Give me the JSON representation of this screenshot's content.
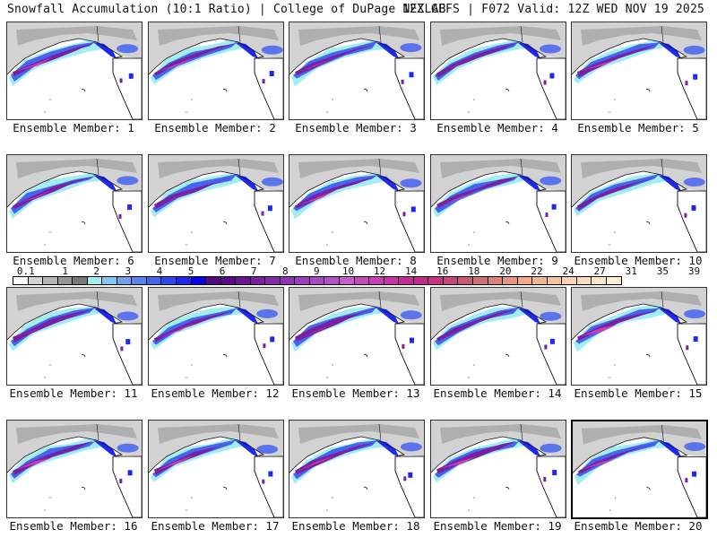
{
  "header": {
    "title_left": "Snowfall Accumulation (10:1 Ratio) | College of DuPage NEXLAB",
    "title_right": "12Z GEFS | F072 Valid: 12Z WED NOV 19 2025"
  },
  "panels": [
    {
      "label": "Ensemble Member: 1"
    },
    {
      "label": "Ensemble Member: 2"
    },
    {
      "label": "Ensemble Member: 3"
    },
    {
      "label": "Ensemble Member: 4"
    },
    {
      "label": "Ensemble Member: 5"
    },
    {
      "label": "Ensemble Member: 6"
    },
    {
      "label": "Ensemble Member: 7"
    },
    {
      "label": "Ensemble Member: 8"
    },
    {
      "label": "Ensemble Member: 9"
    },
    {
      "label": "Ensemble Member: 10"
    },
    {
      "label": "Ensemble Member: 11"
    },
    {
      "label": "Ensemble Member: 12"
    },
    {
      "label": "Ensemble Member: 13"
    },
    {
      "label": "Ensemble Member: 14"
    },
    {
      "label": "Ensemble Member: 15"
    },
    {
      "label": "Ensemble Member: 16"
    },
    {
      "label": "Ensemble Member: 17"
    },
    {
      "label": "Ensemble Member: 18"
    },
    {
      "label": "Ensemble Member: 19"
    },
    {
      "label": "Ensemble Member: 20",
      "selected": true
    }
  ],
  "colorbar": {
    "labels": [
      "0.1",
      "1",
      "2",
      "3",
      "4",
      "5",
      "6",
      "7",
      "8",
      "9",
      "10",
      "12",
      "14",
      "16",
      "18",
      "20",
      "22",
      "24",
      "27",
      "31",
      "35",
      "39"
    ],
    "colors": [
      "#ffffff",
      "#d2d2d2",
      "#b4b4b4",
      "#969696",
      "#787878",
      "#a0eef0",
      "#82c8f0",
      "#6ea0f0",
      "#5a82f0",
      "#4664f0",
      "#3246f0",
      "#1e28f0",
      "#0a00f0",
      "#50087a",
      "#5a0a8c",
      "#6a1496",
      "#7820a0",
      "#8428aa",
      "#9032b4",
      "#9c3cbe",
      "#aa46c4",
      "#b450c8",
      "#c85ad2",
      "#c846be",
      "#c83cb4",
      "#c832a6",
      "#c82896",
      "#c8288c",
      "#c83282",
      "#c84678",
      "#c85a78",
      "#d06e78",
      "#dc8278",
      "#e69682",
      "#f0aa8c",
      "#f0b496",
      "#f5c3a0",
      "#fad2b4",
      "#fadcbe",
      "#ffe6c8",
      "#ffeed2"
    ]
  },
  "map_colors": {
    "ocean": "#ffffff",
    "land_snow_light": "#d2d2d2",
    "land_snow_mid": "#a0a0a0",
    "snow_cyan": "#a0eef0",
    "snow_blue": "#4664f0",
    "snow_deep_blue": "#1e28f0",
    "snow_purple": "#7820a0",
    "snow_magenta": "#c83cb4",
    "coast": "#111111"
  }
}
